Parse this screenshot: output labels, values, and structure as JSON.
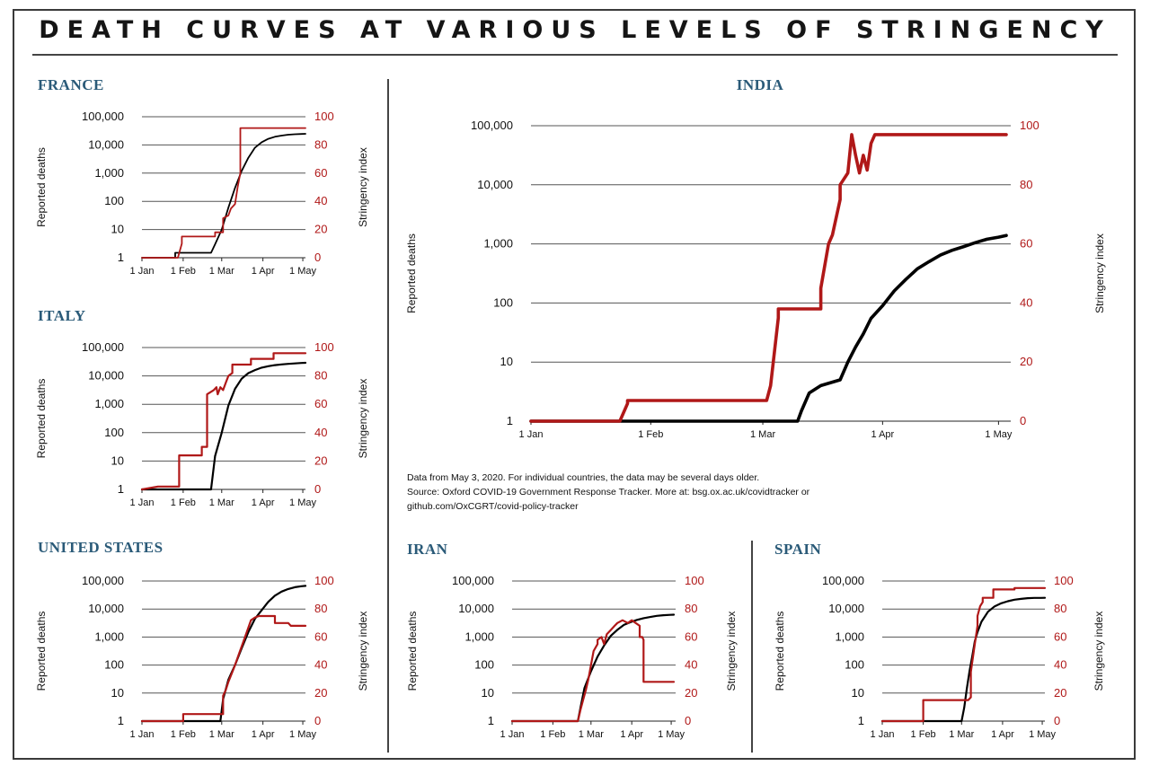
{
  "title": "DEATH CURVES AT VARIOUS LEVELS OF STRINGENCY",
  "note": {
    "line1": "Data from May 3, 2020. For individual countries, the data may be several days older.",
    "line2": "Source: Oxford COVID-19 Government Response Tracker. More at: bsg.ox.ac.uk/covidtracker or",
    "line3": "github.com/OxCGRT/covid-policy-tracker"
  },
  "colors": {
    "deaths": "#000000",
    "stringency": "#b01818",
    "country_title": "#2a5a78"
  },
  "chart_data": [
    {
      "type": "line",
      "title": "FRANCE",
      "ylabel": "Reported deaths",
      "y2label": "Stringency index",
      "x_ticks": [
        "1 Jan",
        "1 Feb",
        "1 Mar",
        "1 Apr",
        "1 May"
      ],
      "y_ticks": [
        "1",
        "10",
        "100",
        "1,000",
        "10,000",
        "100,000"
      ],
      "y2_ticks": [
        "0",
        "20",
        "40",
        "60",
        "80",
        "100"
      ],
      "y_scale": "log",
      "ylim": [
        1,
        100000
      ],
      "y2lim": [
        0,
        100
      ],
      "series": [
        {
          "axis": "left",
          "x": [
            0,
            25,
            25,
            52,
            55,
            60,
            65,
            70,
            75,
            80,
            85,
            90,
            95,
            100,
            105,
            110,
            115,
            120,
            123
          ],
          "y": [
            1,
            1,
            1.5,
            1.5,
            3,
            10,
            60,
            300,
            1200,
            3500,
            8000,
            12500,
            16500,
            19500,
            21500,
            23000,
            24000,
            24500,
            24800
          ]
        },
        {
          "axis": "right",
          "x": [
            0,
            27,
            30,
            30,
            55,
            55,
            61,
            61,
            65,
            67,
            70,
            72,
            74,
            74,
            123
          ],
          "y": [
            0,
            0,
            10,
            15,
            15,
            18,
            18,
            28,
            30,
            35,
            38,
            50,
            60,
            92,
            92
          ]
        }
      ]
    },
    {
      "type": "line",
      "title": "ITALY",
      "ylabel": "Reported deaths",
      "y2label": "Stringency index",
      "x_ticks": [
        "1 Jan",
        "1 Feb",
        "1 Mar",
        "1 Apr",
        "1 May"
      ],
      "y_ticks": [
        "1",
        "10",
        "100",
        "1,000",
        "10,000",
        "100,000"
      ],
      "y2_ticks": [
        "0",
        "20",
        "40",
        "60",
        "80",
        "100"
      ],
      "y_scale": "log",
      "ylim": [
        1,
        100000
      ],
      "y2lim": [
        0,
        100
      ],
      "series": [
        {
          "axis": "left",
          "x": [
            0,
            45,
            52,
            55,
            60,
            65,
            70,
            75,
            80,
            85,
            90,
            95,
            100,
            105,
            110,
            115,
            120,
            123
          ],
          "y": [
            1,
            1,
            1,
            15,
            100,
            900,
            3500,
            8000,
            12500,
            16000,
            19500,
            22000,
            24000,
            25500,
            26500,
            27500,
            28500,
            28900
          ]
        },
        {
          "axis": "right",
          "x": [
            0,
            12,
            28,
            28,
            45,
            45,
            49,
            49,
            54,
            56,
            57,
            59,
            61,
            63,
            65,
            68,
            68,
            82,
            82,
            99,
            99,
            123
          ],
          "y": [
            0,
            2,
            2,
            24,
            24,
            30,
            30,
            67,
            70,
            72,
            67,
            72,
            70,
            75,
            80,
            82,
            88,
            88,
            92,
            92,
            96,
            96
          ]
        }
      ]
    },
    {
      "type": "line",
      "title": "UNITED STATES",
      "ylabel": "Reported deaths",
      "y2label": "Stringency index",
      "x_ticks": [
        "1 Jan",
        "1 Feb",
        "1 Mar",
        "1 Apr",
        "1 May"
      ],
      "y_ticks": [
        "1",
        "10",
        "100",
        "1,000",
        "10,000",
        "100,000"
      ],
      "y2_ticks": [
        "0",
        "20",
        "40",
        "60",
        "80",
        "100"
      ],
      "y_scale": "log",
      "ylim": [
        1,
        100000
      ],
      "y2lim": [
        0,
        100
      ],
      "series": [
        {
          "axis": "left",
          "x": [
            0,
            59,
            61,
            65,
            70,
            75,
            80,
            85,
            90,
            95,
            100,
            105,
            110,
            115,
            120,
            123
          ],
          "y": [
            1,
            1,
            6,
            30,
            100,
            400,
            1500,
            4500,
            9000,
            18000,
            30000,
            42000,
            52000,
            60000,
            65000,
            67000
          ]
        },
        {
          "axis": "right",
          "x": [
            0,
            31,
            31,
            61,
            61,
            63,
            65,
            68,
            70,
            73,
            76,
            79,
            82,
            85,
            88,
            92,
            100,
            100,
            110,
            112,
            123
          ],
          "y": [
            0,
            0,
            5,
            5,
            18,
            22,
            28,
            35,
            40,
            48,
            56,
            64,
            72,
            74,
            75,
            75,
            75,
            70,
            70,
            68,
            68
          ]
        }
      ]
    },
    {
      "type": "line",
      "title": "INDIA",
      "ylabel": "Reported deaths",
      "y2label": "Stringency index",
      "x_ticks": [
        "1 Jan",
        "1 Feb",
        "1 Mar",
        "1 Apr",
        "1 May"
      ],
      "y_ticks": [
        "1",
        "10",
        "100",
        "1,000",
        "10,000",
        "100,000"
      ],
      "y2_ticks": [
        "0",
        "20",
        "40",
        "60",
        "80",
        "100"
      ],
      "y_scale": "log",
      "ylim": [
        1,
        100000
      ],
      "y2lim": [
        0,
        100
      ],
      "series": [
        {
          "axis": "left",
          "x": [
            0,
            69,
            70,
            72,
            75,
            80,
            82,
            84,
            86,
            88,
            91,
            94,
            97,
            100,
            103,
            106,
            109,
            112,
            115,
            118,
            121,
            123
          ],
          "y": [
            1,
            1,
            1.5,
            3,
            4,
            5,
            10,
            18,
            30,
            55,
            90,
            160,
            250,
            380,
            500,
            650,
            780,
            900,
            1050,
            1200,
            1300,
            1390
          ]
        },
        {
          "axis": "right",
          "x": [
            0,
            23,
            25,
            25,
            61,
            62,
            64,
            64,
            75,
            75,
            77,
            78,
            80,
            80,
            82,
            83,
            84,
            85,
            86,
            87,
            88,
            89,
            123
          ],
          "y": [
            0,
            0,
            6,
            7,
            7,
            12,
            35,
            38,
            38,
            45,
            60,
            63,
            75,
            80,
            84,
            97,
            90,
            84,
            90,
            85,
            94,
            97,
            97
          ]
        }
      ]
    },
    {
      "type": "line",
      "title": "IRAN",
      "ylabel": "Reported deaths",
      "y2label": "Stringency index",
      "x_ticks": [
        "1 Jan",
        "1 Feb",
        "1 Mar",
        "1 Apr",
        "1 May"
      ],
      "y_ticks": [
        "1",
        "10",
        "100",
        "1,000",
        "10,000",
        "100,000"
      ],
      "y2_ticks": [
        "0",
        "20",
        "40",
        "60",
        "80",
        "100"
      ],
      "y_scale": "log",
      "ylim": [
        1,
        100000
      ],
      "y2lim": [
        0,
        100
      ],
      "series": [
        {
          "axis": "left",
          "x": [
            0,
            50,
            52,
            55,
            60,
            65,
            70,
            75,
            80,
            85,
            90,
            95,
            100,
            105,
            110,
            115,
            120,
            123
          ],
          "y": [
            1,
            1,
            3,
            15,
            60,
            200,
            500,
            1100,
            1800,
            2700,
            3400,
            4100,
            4700,
            5200,
            5700,
            6000,
            6200,
            6300
          ]
        },
        {
          "axis": "right",
          "x": [
            0,
            50,
            52,
            54,
            56,
            58,
            60,
            62,
            65,
            65,
            68,
            70,
            72,
            75,
            78,
            80,
            84,
            88,
            91,
            94,
            97,
            97,
            99,
            100,
            100,
            110,
            123
          ],
          "y": [
            0,
            0,
            8,
            15,
            22,
            30,
            40,
            50,
            55,
            58,
            60,
            55,
            62,
            65,
            68,
            70,
            72,
            70,
            72,
            70,
            68,
            60,
            60,
            58,
            28,
            28,
            28
          ]
        }
      ]
    },
    {
      "type": "line",
      "title": "SPAIN",
      "ylabel": "Reported deaths",
      "y2label": "Stringency index",
      "x_ticks": [
        "1 Jan",
        "1 Feb",
        "1 Mar",
        "1 Apr",
        "1 May"
      ],
      "y_ticks": [
        "1",
        "10",
        "100",
        "1,000",
        "10,000",
        "100,000"
      ],
      "y2_ticks": [
        "0",
        "20",
        "40",
        "60",
        "80",
        "100"
      ],
      "y_scale": "log",
      "ylim": [
        1,
        100000
      ],
      "y2lim": [
        0,
        100
      ],
      "series": [
        {
          "axis": "left",
          "x": [
            0,
            60,
            62,
            64,
            66,
            68,
            70,
            72,
            75,
            80,
            85,
            90,
            95,
            100,
            105,
            110,
            115,
            120,
            123
          ],
          "y": [
            1,
            1,
            3,
            15,
            60,
            200,
            700,
            1500,
            3500,
            8000,
            12500,
            16000,
            19000,
            21500,
            23000,
            24500,
            25000,
            25000,
            25100
          ]
        },
        {
          "axis": "right",
          "x": [
            0,
            31,
            31,
            61,
            63,
            65,
            67,
            67,
            70,
            72,
            72,
            74,
            76,
            76,
            84,
            84,
            100,
            100,
            123
          ],
          "y": [
            0,
            0,
            15,
            15,
            15,
            15,
            17,
            35,
            55,
            68,
            75,
            82,
            85,
            88,
            88,
            94,
            94,
            95,
            95
          ]
        }
      ]
    }
  ]
}
